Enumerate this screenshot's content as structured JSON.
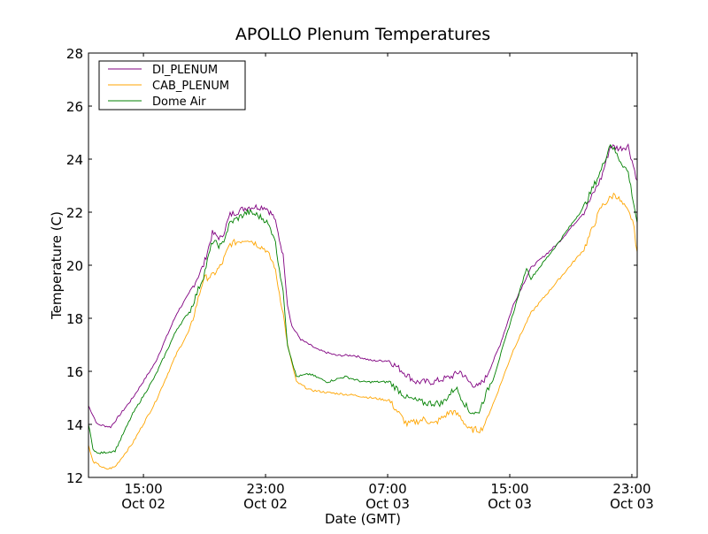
{
  "chart_data": {
    "type": "line",
    "title": "APOLLO Plenum Temperatures",
    "xlabel": "Date (GMT)",
    "ylabel": "Temperature (C)",
    "x_units": "hours since Oct 02 00:00 GMT",
    "xlim": [
      11.4,
      47.35
    ],
    "ylim": [
      12,
      28
    ],
    "yticks": [
      12,
      14,
      16,
      18,
      20,
      22,
      24,
      26,
      28
    ],
    "xticks": [
      {
        "value": 15,
        "line1": "15:00",
        "line2": "Oct 02"
      },
      {
        "value": 23,
        "line1": "23:00",
        "line2": "Oct 02"
      },
      {
        "value": 31,
        "line1": "07:00",
        "line2": "Oct 03"
      },
      {
        "value": 39,
        "line1": "15:00",
        "line2": "Oct 03"
      },
      {
        "value": 47,
        "line1": "23:00",
        "line2": "Oct 03"
      }
    ],
    "grid": false,
    "legend_position": "top-left",
    "series": [
      {
        "name": "DI_PLENUM",
        "color": "#800080",
        "x": [
          11.4,
          11.98,
          12.85,
          14.3,
          15.75,
          17.2,
          18.07,
          18.94,
          19.52,
          20.1,
          20.68,
          21.83,
          23.0,
          23.57,
          24.15,
          24.44,
          24.73,
          25.31,
          26.47,
          27.63,
          28.79,
          29.95,
          31.1,
          31.98,
          32.85,
          34.0,
          35.17,
          35.75,
          36.33,
          36.91,
          37.49,
          38.36,
          39.23,
          40.39,
          42.12,
          43.86,
          45.0,
          45.6,
          46.18,
          46.76,
          47.35
        ],
        "y": [
          14.7,
          14.0,
          13.9,
          15.0,
          16.3,
          18.2,
          19.0,
          20.0,
          21.2,
          21.0,
          21.9,
          22.2,
          22.2,
          21.8,
          20.4,
          18.5,
          17.7,
          17.2,
          16.8,
          16.6,
          16.6,
          16.4,
          16.4,
          16.0,
          15.6,
          15.6,
          15.8,
          16.0,
          15.6,
          15.4,
          15.8,
          17.0,
          18.5,
          19.9,
          20.8,
          22.0,
          23.3,
          24.5,
          24.4,
          24.5,
          23.2
        ]
      },
      {
        "name": "CAB_PLENUM",
        "color": "#ffa500",
        "x": [
          11.4,
          11.69,
          12.56,
          13.14,
          14.3,
          15.75,
          17.2,
          18.07,
          18.94,
          19.52,
          20.1,
          20.68,
          21.83,
          22.41,
          23.0,
          23.57,
          24.15,
          24.44,
          25.02,
          25.89,
          27.05,
          28.79,
          29.95,
          31.1,
          32.27,
          33.43,
          34.0,
          35.17,
          35.75,
          36.33,
          37.2,
          38.07,
          39.23,
          40.39,
          42.12,
          43.86,
          45.0,
          45.89,
          46.76,
          47.05,
          47.35
        ],
        "y": [
          13.2,
          12.6,
          12.3,
          12.4,
          13.3,
          14.8,
          16.7,
          17.6,
          19.5,
          19.6,
          20.0,
          20.8,
          21.0,
          20.8,
          20.6,
          20.0,
          18.2,
          17.0,
          15.6,
          15.3,
          15.2,
          15.1,
          15.0,
          14.9,
          14.0,
          14.2,
          14.0,
          14.5,
          14.3,
          13.8,
          13.8,
          15.0,
          16.8,
          18.2,
          19.4,
          20.6,
          22.2,
          22.7,
          22.0,
          21.7,
          20.5
        ]
      },
      {
        "name": "Dome Air",
        "color": "#008000",
        "x": [
          11.4,
          11.69,
          11.98,
          13.14,
          14.3,
          15.75,
          17.2,
          18.07,
          18.94,
          19.52,
          20.1,
          20.68,
          21.83,
          22.41,
          23.0,
          23.57,
          24.15,
          24.44,
          25.02,
          25.89,
          27.05,
          28.21,
          29.37,
          31.1,
          32.27,
          33.43,
          34.59,
          35.46,
          36.33,
          36.91,
          38.07,
          39.23,
          40.1,
          40.39,
          42.12,
          43.86,
          45.0,
          45.6,
          46.18,
          46.76,
          47.35
        ],
        "y": [
          14.0,
          13.1,
          12.9,
          13.0,
          14.4,
          15.8,
          17.6,
          18.3,
          19.6,
          20.9,
          20.7,
          21.6,
          22.0,
          21.9,
          21.7,
          21.1,
          19.0,
          17.0,
          15.8,
          15.9,
          15.6,
          15.8,
          15.6,
          15.6,
          15.0,
          14.8,
          14.8,
          15.4,
          14.5,
          14.4,
          16.0,
          18.2,
          19.9,
          19.5,
          20.8,
          22.2,
          23.6,
          24.6,
          24.0,
          23.5,
          21.6
        ]
      }
    ]
  }
}
